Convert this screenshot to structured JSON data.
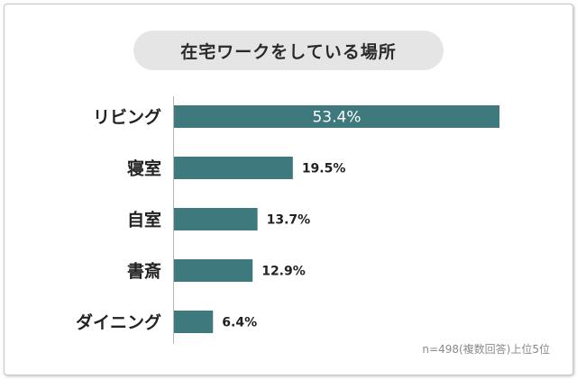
{
  "chart_data": {
    "type": "bar",
    "orientation": "horizontal",
    "title": "在宅ワークをしている場所",
    "categories": [
      "リビング",
      "寝室",
      "自室",
      "書斎",
      "ダイニング"
    ],
    "values": [
      53.4,
      19.5,
      13.7,
      12.9,
      6.4
    ],
    "value_labels": [
      "53.4%",
      "19.5%",
      "13.7%",
      "12.9%",
      "6.4%"
    ],
    "xlim": [
      0,
      53.4
    ],
    "grid": false,
    "legend": "none",
    "bar_color": "#3e7a7d",
    "note": "n=498(複数回答)上位5位"
  }
}
